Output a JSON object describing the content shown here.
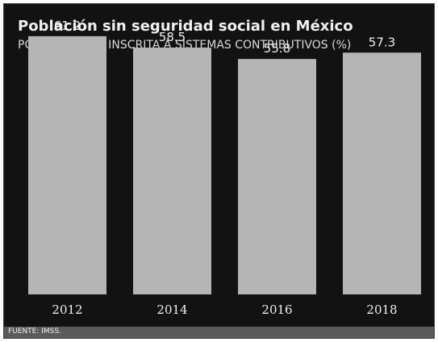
{
  "chart_data": {
    "type": "bar",
    "title": "Población sin seguridad social en México",
    "subtitle": "POBLACIÓN NO INSCRITA A SISTEMAS CONTRIBUTIVOS (%)",
    "categories": [
      "2012",
      "2014",
      "2016",
      "2018"
    ],
    "values": [
      61.2,
      58.5,
      55.8,
      57.3
    ],
    "data_labels": [
      "61.2",
      "58.5",
      "55.8",
      "57.3"
    ],
    "xlabel": "",
    "ylabel": "",
    "ylim": [
      0,
      65
    ],
    "grid": false,
    "legend": "none",
    "colors": {
      "background": "#121212",
      "bar": "#b5b5b5",
      "text": "#f0f0f0",
      "footer": "#5a5a5a"
    }
  },
  "source": "FUENTE: IMSS."
}
